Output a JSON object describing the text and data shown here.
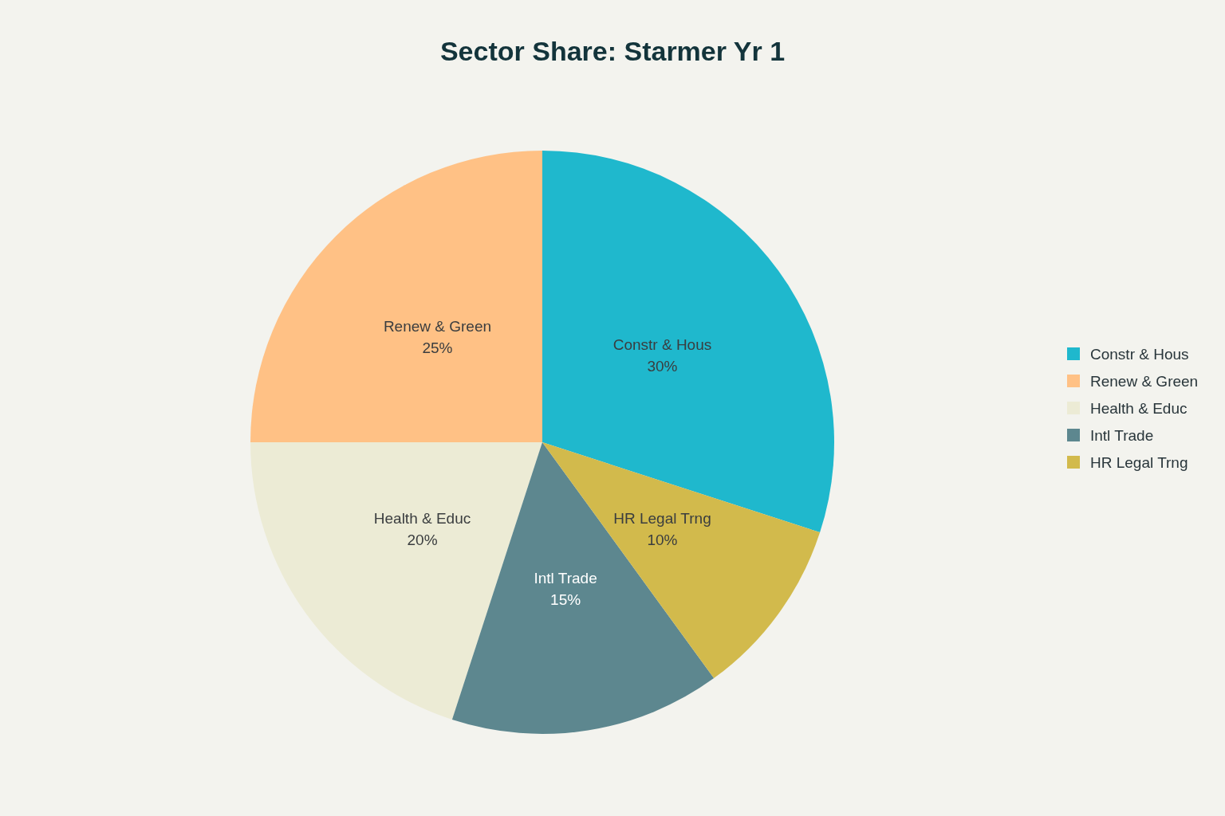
{
  "chart_data": {
    "type": "pie",
    "title": "Sector Share: Starmer Yr 1",
    "categories": [
      "Constr & Hous",
      "Renew & Green",
      "Health & Educ",
      "Intl Trade",
      "HR Legal Trng"
    ],
    "values": [
      30,
      25,
      20,
      15,
      10
    ],
    "colors": [
      "#1fb8cd",
      "#ffc185",
      "#ecebd5",
      "#5d878f",
      "#d2ba4c"
    ],
    "value_labels": [
      "30%",
      "25%",
      "20%",
      "15%",
      "10%"
    ],
    "legend": "right"
  }
}
